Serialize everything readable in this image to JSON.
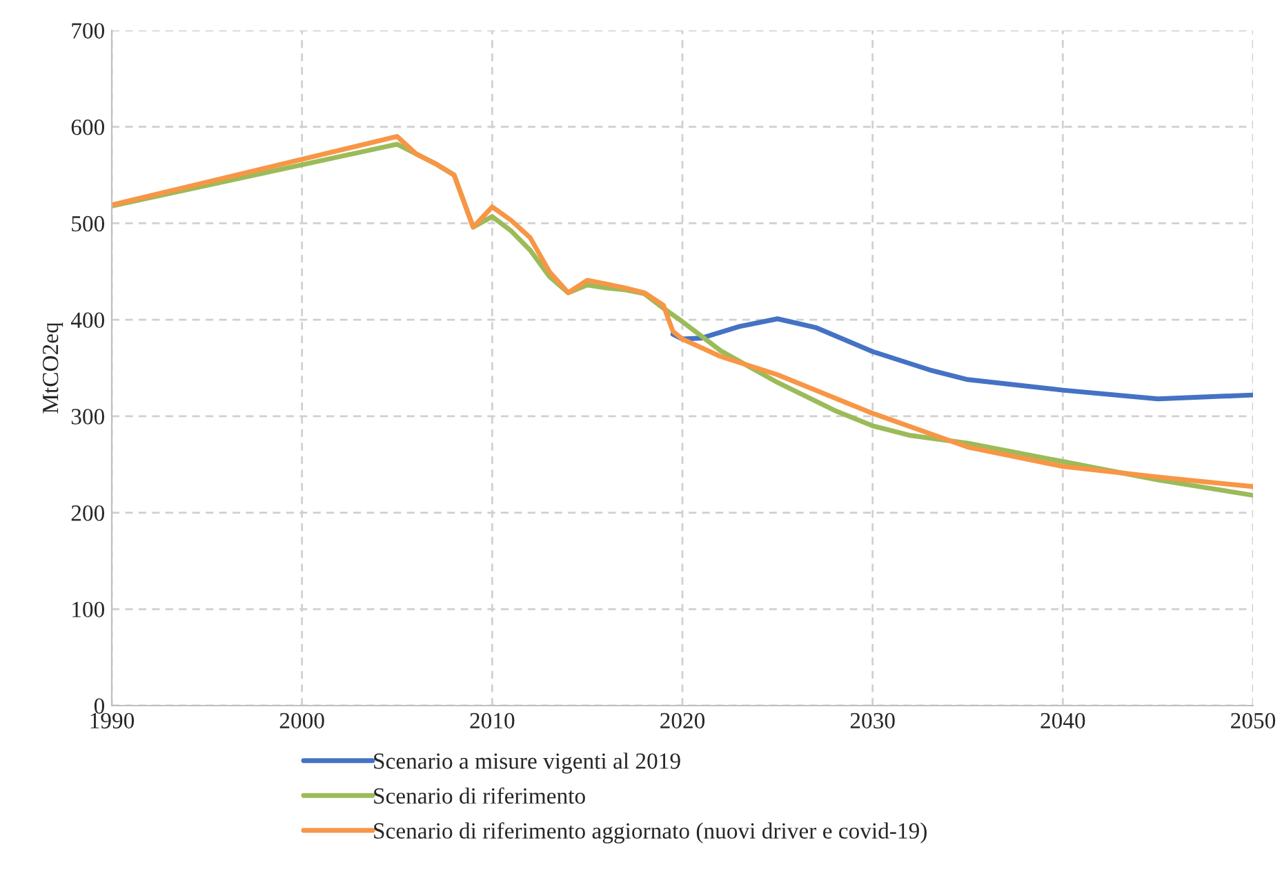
{
  "chart_data": {
    "type": "line",
    "ylabel": "MtCO2eq",
    "xlim": [
      1990,
      2050
    ],
    "xticks": [
      1990,
      2000,
      2010,
      2020,
      2030,
      2040,
      2050
    ],
    "ylim": [
      0,
      700
    ],
    "yticks": [
      0,
      100,
      200,
      300,
      400,
      500,
      600,
      700
    ],
    "grid": true,
    "legend": "bottom",
    "line_style": "solid",
    "marker": "none",
    "series": [
      {
        "name": "Scenario a misure vigenti al 2019",
        "color": "#4472c4",
        "x": [
          2019.5,
          2020,
          2021,
          2023,
          2025,
          2027,
          2030,
          2033,
          2035,
          2040,
          2045,
          2050
        ],
        "values": [
          385,
          380,
          381,
          393,
          401,
          392,
          367,
          348,
          338,
          327,
          318,
          322
        ]
      },
      {
        "name": "Scenario di riferimento",
        "color": "#9bbb59",
        "x": [
          1990,
          2005,
          2006,
          2007,
          2008,
          2009,
          2010,
          2011,
          2012,
          2013,
          2014,
          2015,
          2016,
          2017,
          2018,
          2019,
          2020,
          2022,
          2025,
          2028,
          2030,
          2032,
          2035,
          2040,
          2045,
          2050
        ],
        "values": [
          518,
          582,
          572,
          562,
          550,
          496,
          507,
          492,
          472,
          445,
          428,
          436,
          433,
          431,
          427,
          412,
          398,
          368,
          335,
          306,
          290,
          280,
          272,
          253,
          234,
          218
        ]
      },
      {
        "name": "Scenario di riferimento aggiornato (nuovi driver e covid-19)",
        "color": "#f79646",
        "x": [
          1990,
          2005,
          2006,
          2007,
          2008,
          2009,
          2010,
          2011,
          2012,
          2013,
          2014,
          2015,
          2016,
          2017,
          2018,
          2019,
          2019.5,
          2020,
          2022,
          2025,
          2030,
          2035,
          2040,
          2045,
          2050
        ],
        "values": [
          519,
          590,
          572,
          562,
          550,
          496,
          517,
          503,
          485,
          450,
          428,
          441,
          437,
          433,
          428,
          415,
          388,
          380,
          362,
          343,
          303,
          268,
          248,
          237,
          227
        ]
      }
    ]
  }
}
